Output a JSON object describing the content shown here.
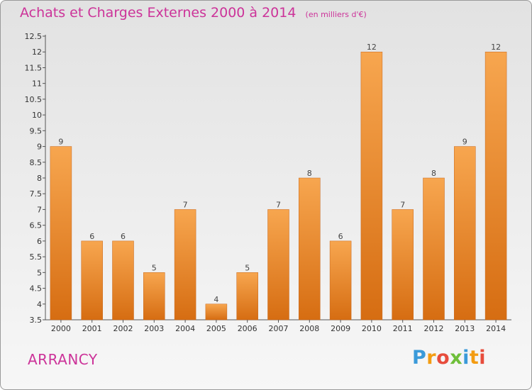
{
  "header": {
    "title": "Achats et Charges Externes 2000 à 2014",
    "subtitle": "(en milliers d'€)"
  },
  "footer": {
    "town": "ARRANCY",
    "logo": "Proxiti"
  },
  "colors": {
    "title": "#cc3399",
    "bar_light": "#f7a64f",
    "bar_dark": "#d66d12"
  },
  "chart_data": {
    "type": "bar",
    "categories": [
      "2000",
      "2001",
      "2002",
      "2003",
      "2004",
      "2005",
      "2006",
      "2007",
      "2008",
      "2009",
      "2010",
      "2011",
      "2012",
      "2013",
      "2014"
    ],
    "values": [
      9,
      6,
      6,
      5,
      7,
      4,
      5,
      7,
      8,
      6,
      12,
      7,
      8,
      9,
      12
    ],
    "ylim": [
      3.5,
      12.5
    ],
    "yticks": [
      "3.5",
      "4",
      "4.5",
      "5",
      "5.5",
      "6",
      "6.5",
      "7",
      "7.5",
      "8",
      "8.5",
      "9",
      "9.5",
      "10",
      "10.5",
      "11",
      "11.5",
      "12",
      "12.5"
    ],
    "grid": false
  }
}
